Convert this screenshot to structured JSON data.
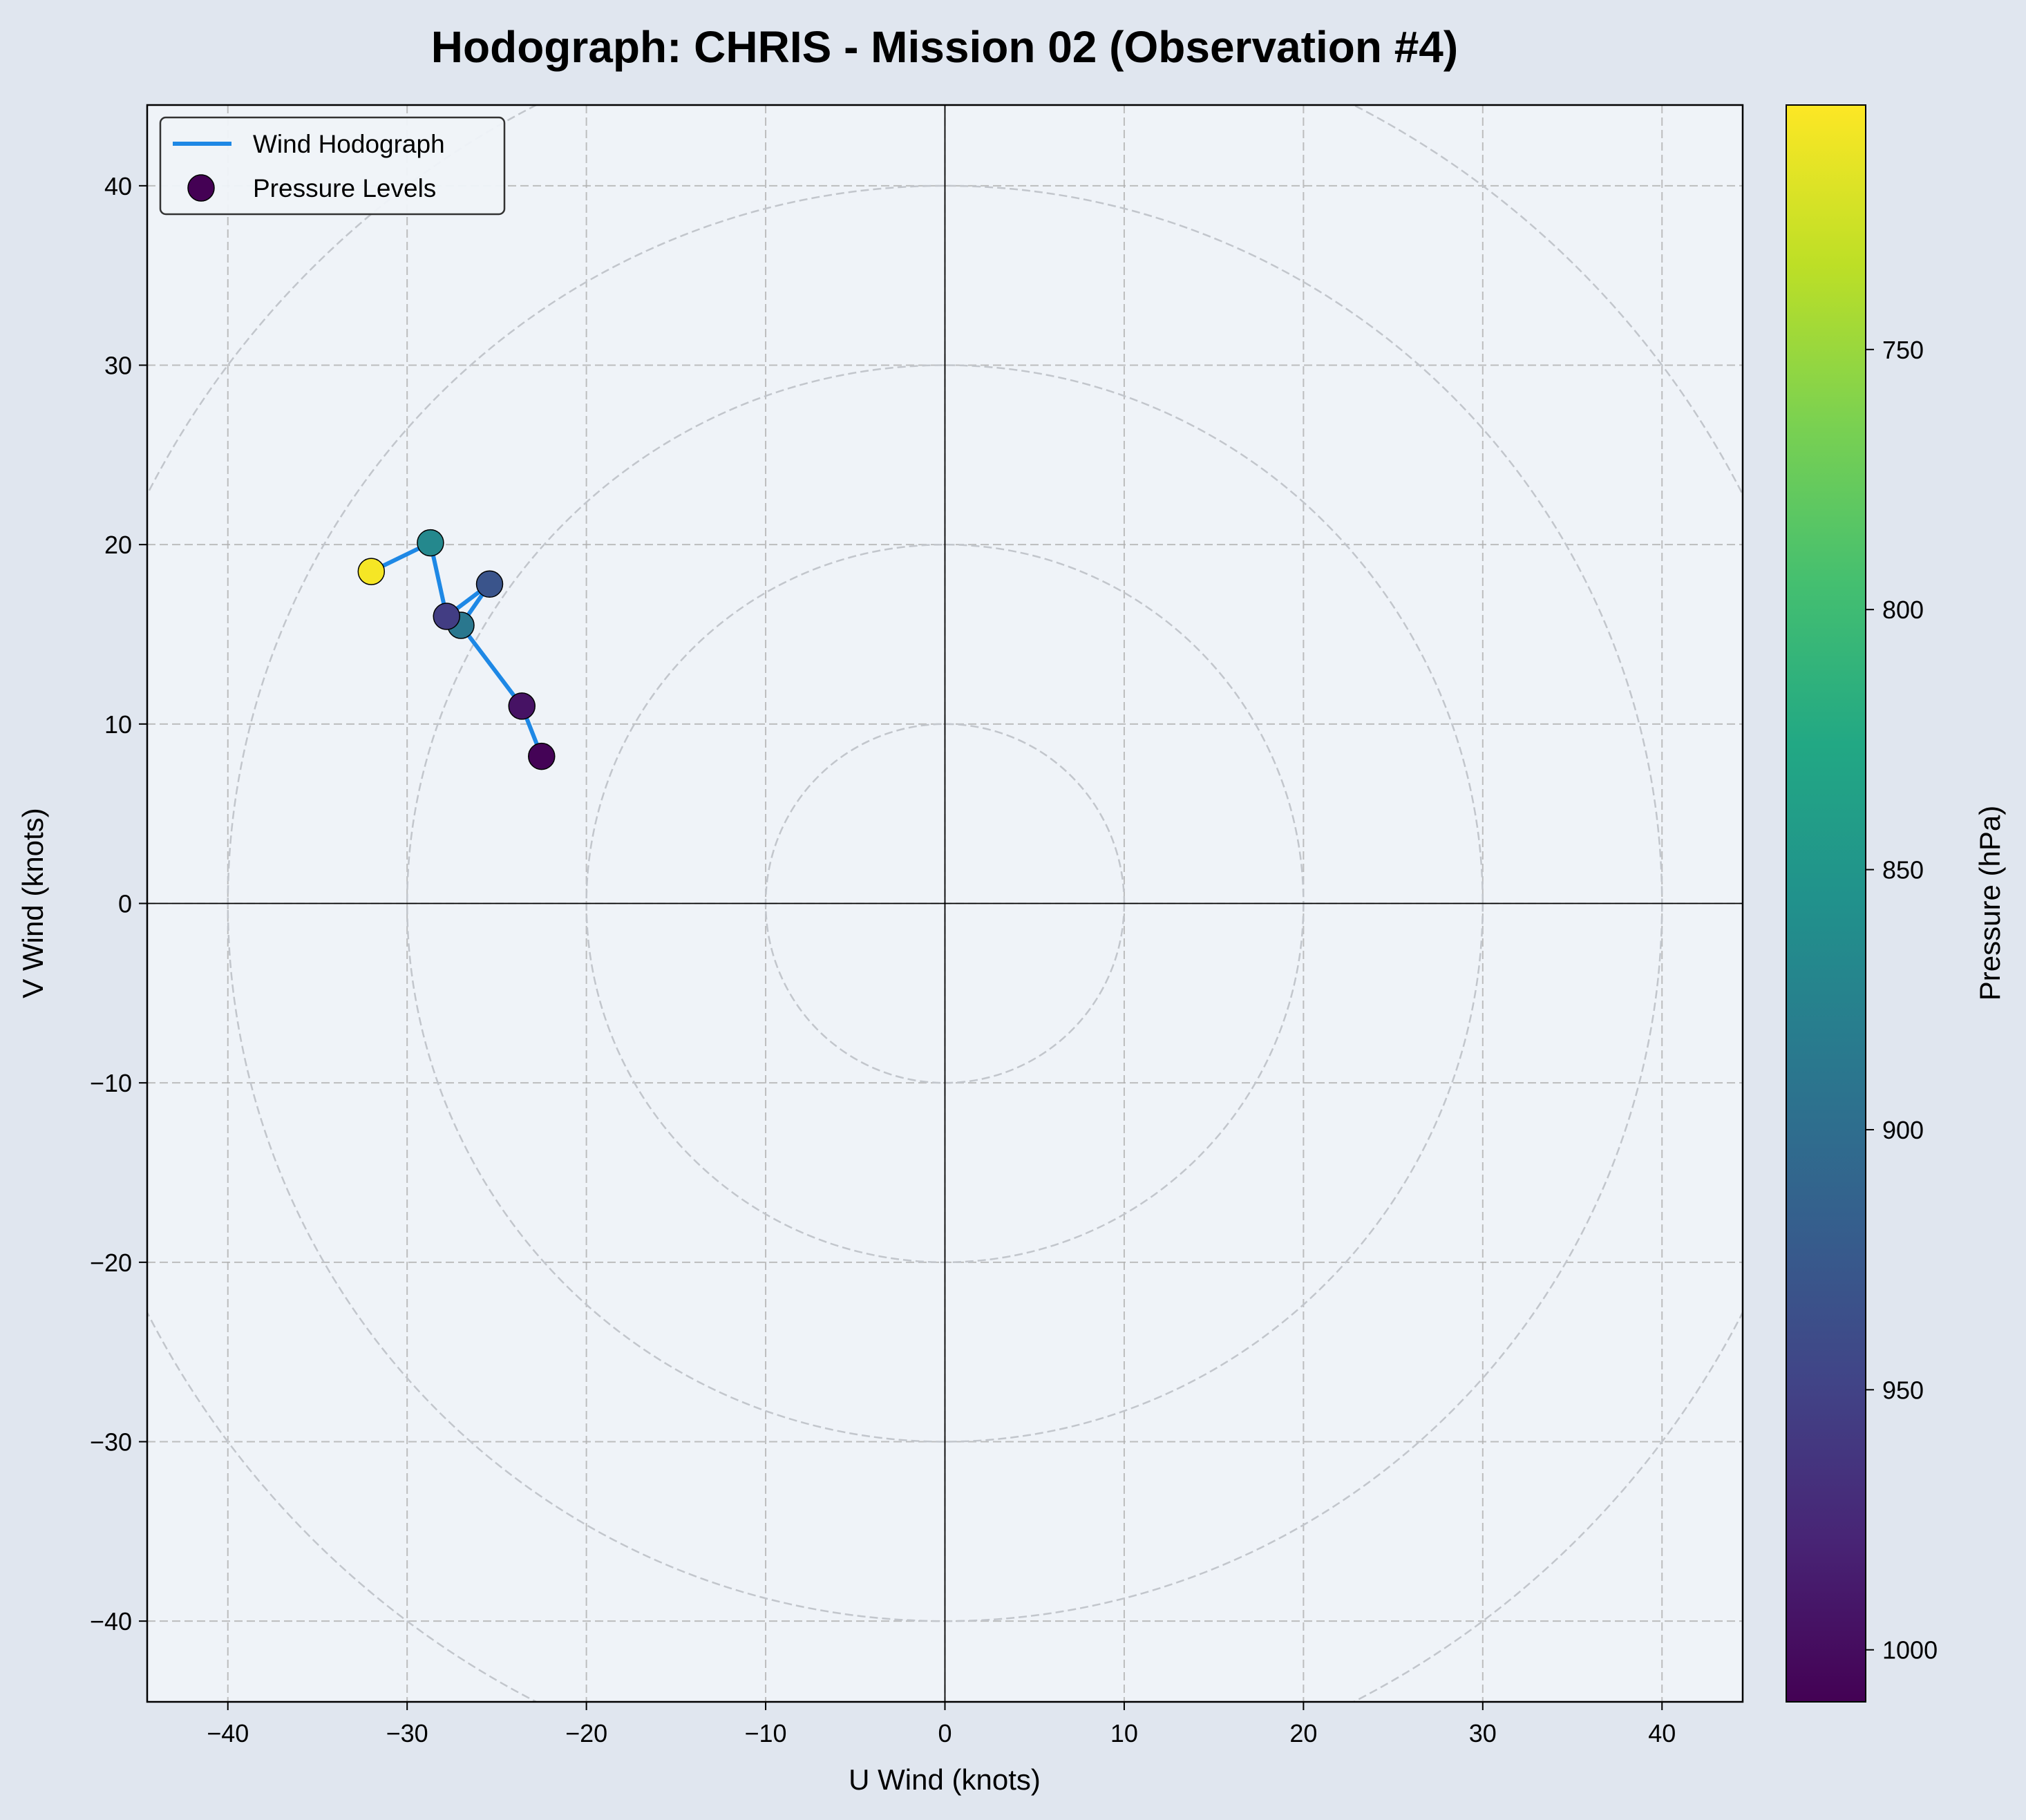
{
  "colors": {
    "figure_background": "#e0e6ef",
    "plot_background": "#eff3f8",
    "line": "#1e88e5",
    "grid": "#b0b0b0",
    "ring": "#c2c6cc",
    "colormap": "viridis"
  },
  "chart_data": {
    "type": "scatter",
    "title": "Hodograph: CHRIS - Mission 02 (Observation #4)",
    "xlabel": "U Wind (knots)",
    "ylabel": "V Wind (knots)",
    "xlim": [
      -44.5,
      44.5
    ],
    "ylim": [
      -44.5,
      44.5
    ],
    "xticks": [
      -40,
      -30,
      -20,
      -10,
      0,
      10,
      20,
      30,
      40
    ],
    "yticks": [
      -40,
      -30,
      -20,
      -10,
      0,
      10,
      20,
      30,
      40
    ],
    "grid": true,
    "rings": [
      10,
      20,
      30,
      40,
      50
    ],
    "legend_position": "top-left",
    "legend": [
      "Wind Hodograph",
      "Pressure Levels"
    ],
    "colorbar": {
      "label": "Pressure (hPa)",
      "range": [
        1010,
        703
      ],
      "ticks": [
        750,
        800,
        850,
        900,
        950,
        1000
      ],
      "colormap": "viridis"
    },
    "points": [
      {
        "u": -22.5,
        "v": 8.2,
        "p": 1008
      },
      {
        "u": -23.6,
        "v": 11.0,
        "p": 995
      },
      {
        "u": -27.0,
        "v": 15.5,
        "p": 888
      },
      {
        "u": -25.4,
        "v": 17.8,
        "p": 930
      },
      {
        "u": -27.8,
        "v": 16.0,
        "p": 955
      },
      {
        "u": -28.7,
        "v": 20.1,
        "p": 868
      },
      {
        "u": -32.0,
        "v": 18.5,
        "p": 707
      }
    ]
  }
}
